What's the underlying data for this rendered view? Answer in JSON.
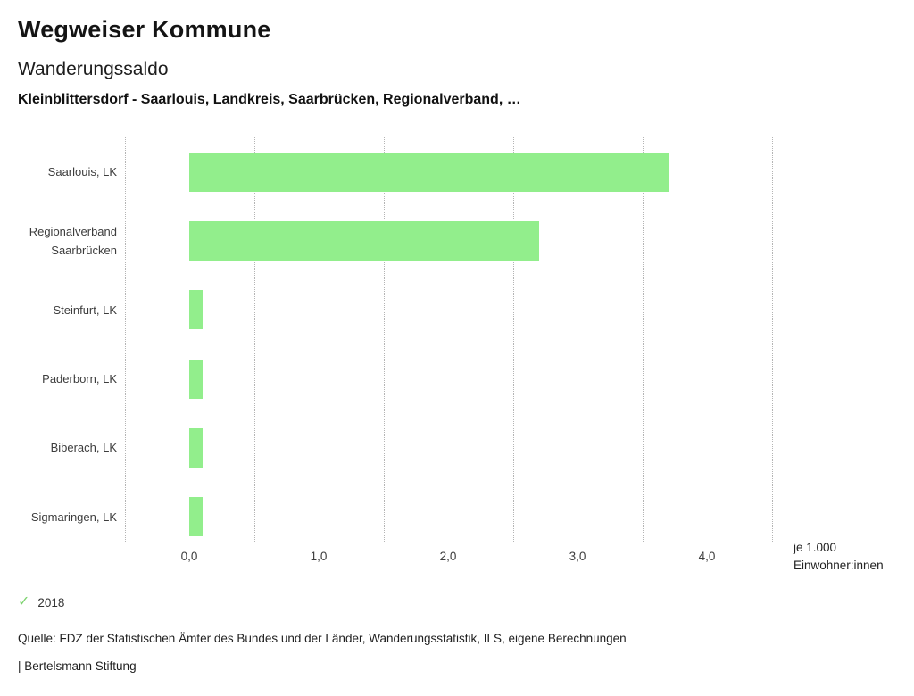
{
  "header": {
    "title": "Wegweiser Kommune",
    "subtitle": "Wanderungssaldo",
    "context": "Kleinblittersdorf - Saarlouis, Landkreis, Saarbrücken, Regionalverband, …"
  },
  "chart_data": {
    "type": "bar",
    "orientation": "horizontal",
    "title": "Wanderungssaldo",
    "categories": [
      "Saarlouis, LK",
      "Regionalverband Saarbrücken",
      "Steinfurt, LK",
      "Paderborn, LK",
      "Biberach, LK",
      "Sigmaringen, LK"
    ],
    "series_name": "2018",
    "values": [
      3.7,
      2.7,
      0.1,
      0.1,
      0.1,
      0.1
    ],
    "value_unit": "je 1.000 Einwohner:innen",
    "unit_label_lines": [
      "je 1.000",
      "Einwohner:innen"
    ],
    "xlim": [
      -0.5,
      4.5
    ],
    "x_ticks": [
      0,
      1,
      2,
      3,
      4
    ],
    "x_tick_labels": [
      "0,0",
      "1,0",
      "2,0",
      "3,0",
      "4,0"
    ],
    "gridlines": [
      -0.5,
      0.5,
      1.5,
      2.5,
      3.5,
      4.5
    ],
    "grid_style": "dotted-vertical",
    "legend_position": "bottom-left",
    "bar_color": "#92ee8c",
    "check_color": "#7dd36f"
  },
  "legend": {
    "label": "2018"
  },
  "footer": {
    "source": "Quelle: FDZ der Statistischen Ämter des Bundes und der Länder, Wanderungsstatistik, ILS, eigene Berechnungen",
    "attribution": "| Bertelsmann Stiftung"
  }
}
